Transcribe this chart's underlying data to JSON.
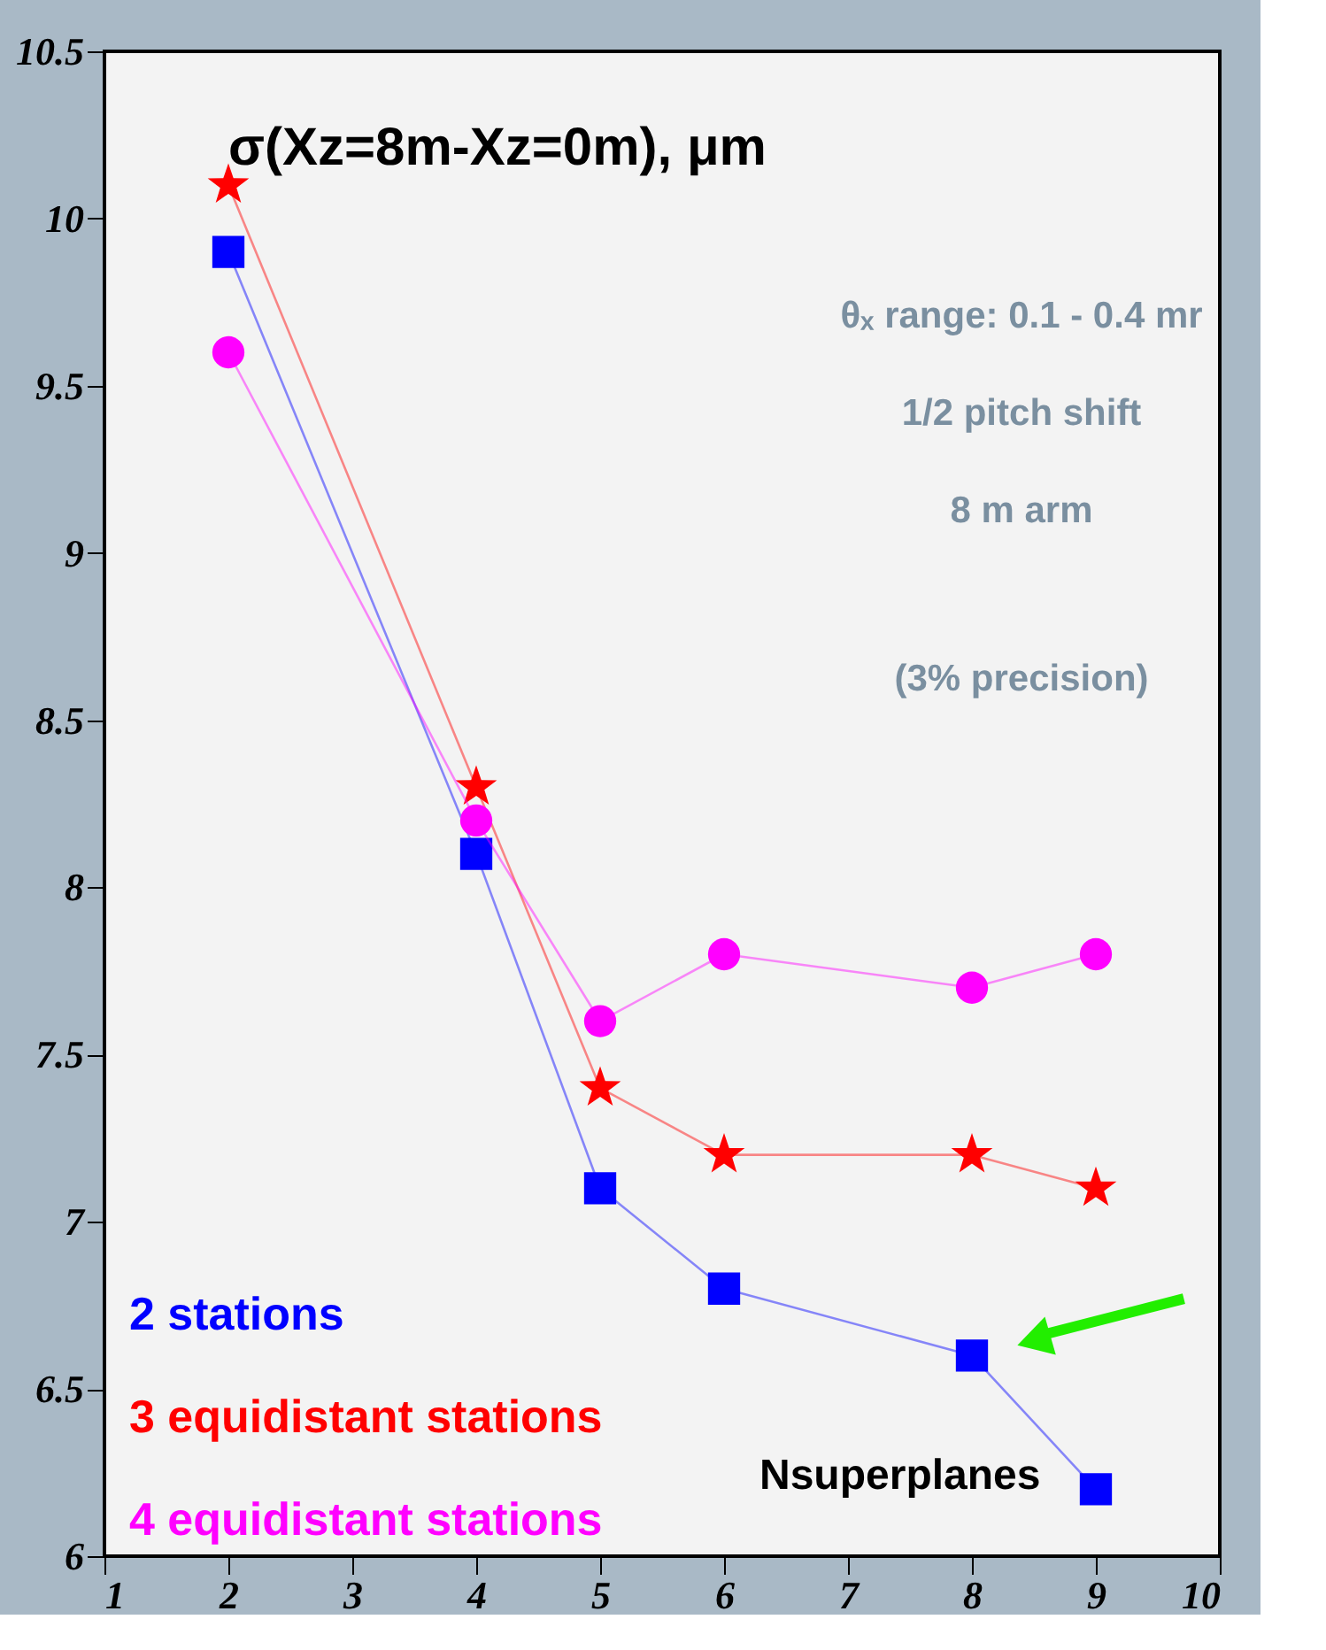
{
  "chart_data": {
    "type": "line",
    "title": "σ(Xz=8m-Xz=0m), μm",
    "xlabel": "Nsuperplanes",
    "x": [
      2,
      4,
      5,
      6,
      8,
      9
    ],
    "series": [
      {
        "name": "2 stations",
        "color": "#0000ff",
        "marker": "square",
        "values": [
          9.9,
          8.1,
          7.1,
          6.8,
          6.6,
          6.2
        ]
      },
      {
        "name": "3 equidistant stations",
        "color": "#ff0000",
        "marker": "star",
        "values": [
          10.1,
          8.3,
          7.4,
          7.2,
          7.2,
          7.1
        ]
      },
      {
        "name": "4 equidistant stations",
        "color": "#ff00ff",
        "marker": "circle",
        "values": [
          9.6,
          8.2,
          7.6,
          7.8,
          7.7,
          7.8
        ]
      }
    ],
    "annotations": [
      "θₓ range: 0.1 - 0.4 mr",
      "1/2 pitch shift",
      "8 m arm",
      "(3% precision)"
    ],
    "xlim": [
      1,
      10
    ],
    "xticks": [
      1,
      2,
      3,
      4,
      5,
      6,
      7,
      8,
      9,
      10
    ],
    "ylim": [
      6,
      10.5
    ],
    "yticks": [
      6,
      6.5,
      7,
      7.5,
      8,
      8.5,
      9,
      9.5,
      10,
      10.5
    ],
    "grid": false,
    "legend": "bottom left"
  }
}
